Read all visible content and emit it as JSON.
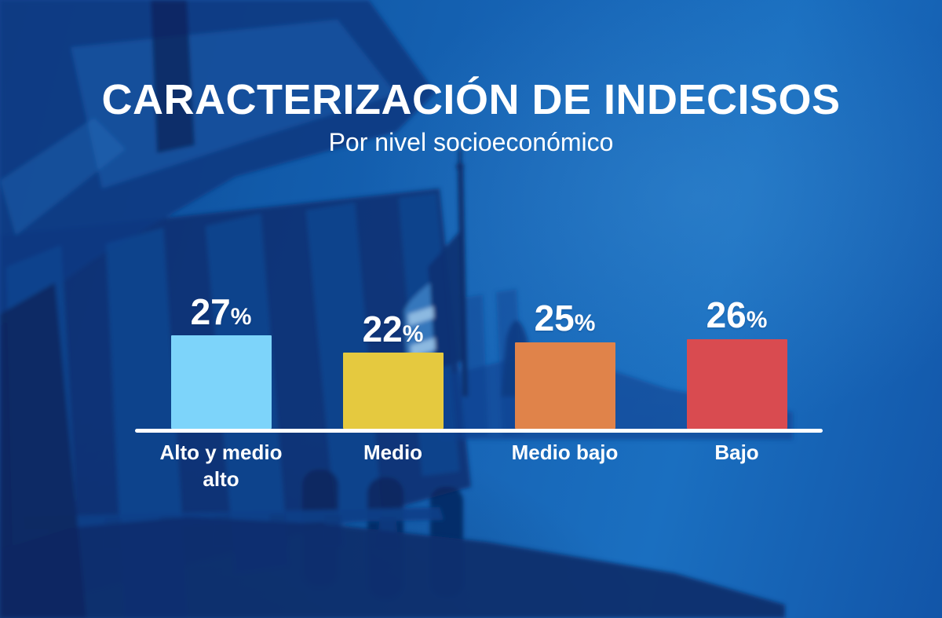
{
  "header": {
    "title": "CARACTERIZACIÓN DE INDECISOS",
    "subtitle": "Por nivel socioeconómico"
  },
  "chart_data": {
    "type": "bar",
    "title": "CARACTERIZACIÓN DE INDECISOS",
    "subtitle": "Por nivel socioeconómico",
    "categories": [
      "Alto y medio alto",
      "Medio",
      "Medio bajo",
      "Bajo"
    ],
    "values": [
      27,
      22,
      25,
      26
    ],
    "unit": "%",
    "value_labels": [
      "27%",
      "22%",
      "25%",
      "26%"
    ],
    "bar_colors": [
      "#7DD4FA",
      "#E5C93F",
      "#E0834A",
      "#D94B50"
    ],
    "axis_color": "#FFFFFF",
    "text_color": "#FFFFFF",
    "grid": false,
    "legend": false,
    "ylim": [
      0,
      30
    ],
    "xlabel": "",
    "ylabel": ""
  },
  "background": {
    "subject": "palacio-legislativo-blue-duotone-photo",
    "sky_color": "#1765B6",
    "building_color": "#0B3A82"
  }
}
